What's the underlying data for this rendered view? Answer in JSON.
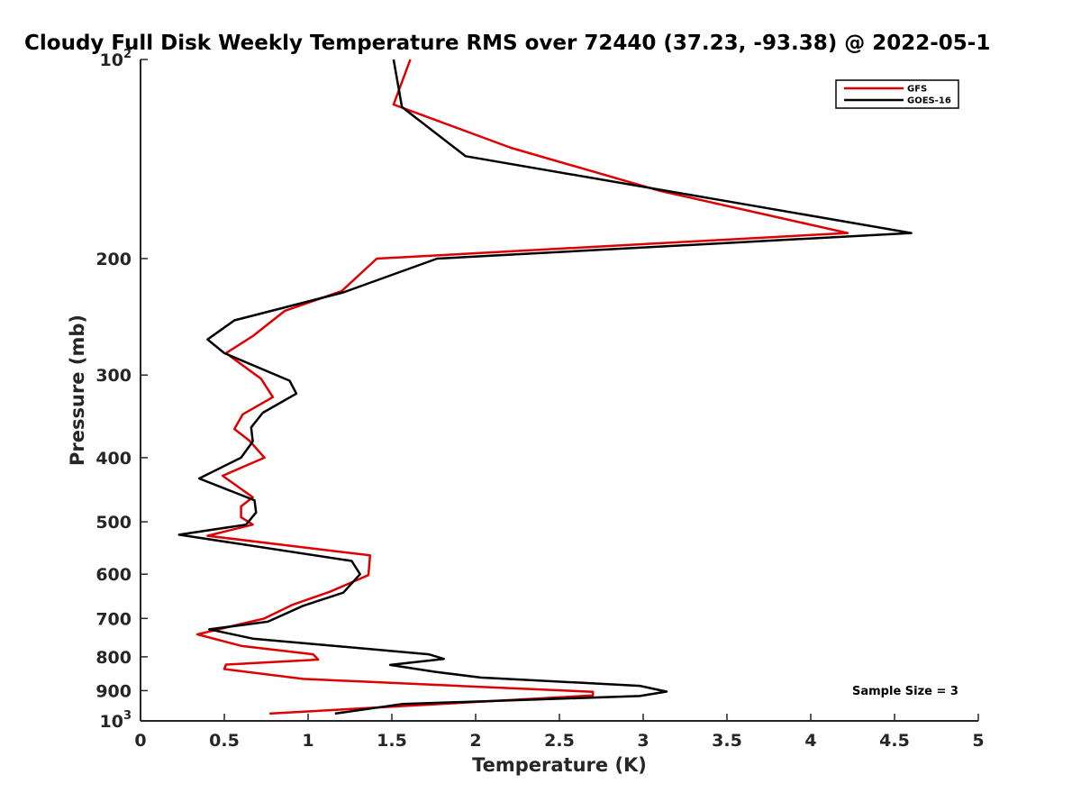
{
  "chart_data": {
    "type": "line",
    "title": "Cloudy Full Disk Weekly Temperature RMS over 72440 (37.23, -93.38) @ 2022-05-1",
    "xlabel": "Temperature (K)",
    "ylabel": "Pressure (mb)",
    "xlim": [
      0,
      5
    ],
    "ylim": [
      100,
      1000
    ],
    "y_scale": "log",
    "y_reversed": true,
    "x_ticks": [
      0,
      0.5,
      1,
      1.5,
      2,
      2.5,
      3,
      3.5,
      4,
      4.5,
      5
    ],
    "x_tick_labels": [
      "0",
      "0.5",
      "1",
      "1.5",
      "2",
      "2.5",
      "3",
      "3.5",
      "4",
      "4.5",
      "5"
    ],
    "y_ticks": [
      100,
      200,
      300,
      400,
      500,
      600,
      700,
      800,
      900,
      1000
    ],
    "y_tick_labels": [
      {
        "base": "10",
        "exp": "2"
      },
      {
        "base": "200",
        "exp": ""
      },
      {
        "base": "300",
        "exp": ""
      },
      {
        "base": "400",
        "exp": ""
      },
      {
        "base": "500",
        "exp": ""
      },
      {
        "base": "600",
        "exp": ""
      },
      {
        "base": "700",
        "exp": ""
      },
      {
        "base": "800",
        "exp": ""
      },
      {
        "base": "900",
        "exp": ""
      },
      {
        "base": "10",
        "exp": "3"
      }
    ],
    "grid": false,
    "legend_position": "top-right",
    "series": [
      {
        "name": "GFS",
        "color": "#dd0000",
        "points": [
          [
            1.61,
            100
          ],
          [
            1.51,
            117
          ],
          [
            2.21,
            136
          ],
          [
            3.1,
            158
          ],
          [
            4.22,
            183
          ],
          [
            1.41,
            200
          ],
          [
            1.2,
            224
          ],
          [
            0.86,
            240
          ],
          [
            0.67,
            262
          ],
          [
            0.51,
            278
          ],
          [
            0.72,
            304
          ],
          [
            0.79,
            324
          ],
          [
            0.61,
            344
          ],
          [
            0.56,
            362
          ],
          [
            0.65,
            377
          ],
          [
            0.74,
            400
          ],
          [
            0.49,
            426
          ],
          [
            0.67,
            459
          ],
          [
            0.6,
            474
          ],
          [
            0.6,
            492
          ],
          [
            0.67,
            505
          ],
          [
            0.4,
            525
          ],
          [
            1.37,
            562
          ],
          [
            1.36,
            602
          ],
          [
            1.13,
            638
          ],
          [
            0.91,
            667
          ],
          [
            0.74,
            700
          ],
          [
            0.34,
            740
          ],
          [
            0.6,
            770
          ],
          [
            1.03,
            793
          ],
          [
            1.06,
            808
          ],
          [
            0.51,
            822
          ],
          [
            0.5,
            835
          ],
          [
            0.97,
            864
          ],
          [
            2.7,
            904
          ],
          [
            2.7,
            915
          ],
          [
            0.77,
            975
          ]
        ]
      },
      {
        "name": "GOES-16",
        "color": "#000000",
        "points": [
          [
            1.51,
            100
          ],
          [
            1.56,
            118
          ],
          [
            1.94,
            140
          ],
          [
            3.45,
            163
          ],
          [
            4.6,
            183
          ],
          [
            1.77,
            200
          ],
          [
            1.21,
            225
          ],
          [
            0.56,
            248
          ],
          [
            0.4,
            265
          ],
          [
            0.5,
            278
          ],
          [
            0.89,
            306
          ],
          [
            0.93,
            320
          ],
          [
            0.73,
            342
          ],
          [
            0.66,
            360
          ],
          [
            0.67,
            378
          ],
          [
            0.6,
            400
          ],
          [
            0.35,
            430
          ],
          [
            0.68,
            464
          ],
          [
            0.69,
            484
          ],
          [
            0.63,
            505
          ],
          [
            0.23,
            523
          ],
          [
            1.26,
            573
          ],
          [
            1.31,
            600
          ],
          [
            1.21,
            640
          ],
          [
            0.97,
            670
          ],
          [
            0.76,
            708
          ],
          [
            0.41,
            727
          ],
          [
            0.67,
            751
          ],
          [
            1.72,
            793
          ],
          [
            1.81,
            806
          ],
          [
            1.49,
            823
          ],
          [
            1.76,
            843
          ],
          [
            2.03,
            860
          ],
          [
            2.98,
            885
          ],
          [
            3.14,
            903
          ],
          [
            2.98,
            917
          ],
          [
            1.56,
            943
          ],
          [
            1.16,
            975
          ]
        ]
      }
    ],
    "annotations": [
      "Sample Size = 3"
    ]
  }
}
